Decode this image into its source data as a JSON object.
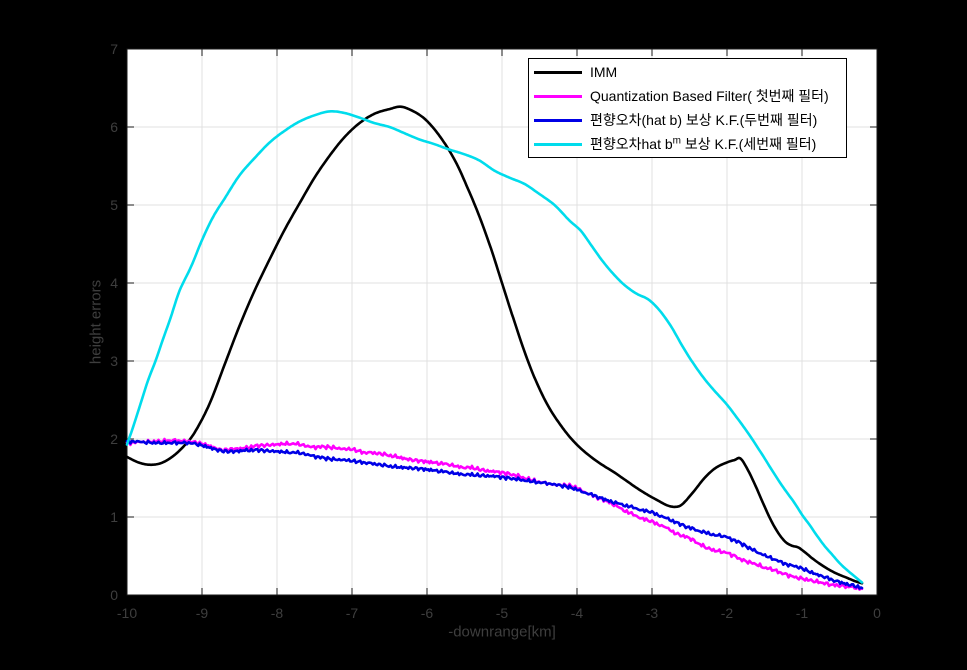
{
  "figure": {
    "background": "#000000",
    "plot_background": "#ffffff",
    "grid_color": "#e0e0e0",
    "tick_text_color": "#3e3e3e",
    "spine_color": "#1a1a1a"
  },
  "legend": {
    "entries": [
      {
        "label_pre": "IMM",
        "label_sup": "",
        "label_post": ""
      },
      {
        "label_pre": "Quantization Based Filter( 첫번째 필터)",
        "label_sup": "",
        "label_post": ""
      },
      {
        "label_pre": "편향오차(hat b) 보상 K.F.(두번째 필터)",
        "label_sup": "",
        "label_post": ""
      },
      {
        "label_pre": "편향오차hat b",
        "label_sup": "m",
        "label_post": " 보상 K.F.(세번째 필터)"
      }
    ]
  },
  "chart_data": {
    "type": "line",
    "title": "",
    "xlabel": "-downrange[km]",
    "ylabel": "height errors",
    "xlim": [
      -10,
      0
    ],
    "ylim": [
      0,
      7
    ],
    "x_ticks": [
      -10,
      -9,
      -8,
      -7,
      -6,
      -5,
      -4,
      -3,
      -2,
      -1,
      0
    ],
    "y_ticks": [
      0,
      1,
      2,
      3,
      4,
      5,
      6,
      7
    ],
    "grid": true,
    "legend_position": "inside-top-right",
    "series": [
      {
        "name": "IMM",
        "color": "#000000",
        "jitter": 0,
        "points": [
          [
            -10,
            1.77
          ],
          [
            -9.85,
            1.7
          ],
          [
            -9.7,
            1.67
          ],
          [
            -9.55,
            1.69
          ],
          [
            -9.4,
            1.77
          ],
          [
            -9.25,
            1.9
          ],
          [
            -9.1,
            2.08
          ],
          [
            -8.9,
            2.45
          ],
          [
            -8.7,
            2.95
          ],
          [
            -8.5,
            3.45
          ],
          [
            -8.3,
            3.9
          ],
          [
            -8.1,
            4.3
          ],
          [
            -7.9,
            4.68
          ],
          [
            -7.7,
            5.02
          ],
          [
            -7.5,
            5.35
          ],
          [
            -7.3,
            5.63
          ],
          [
            -7.1,
            5.87
          ],
          [
            -6.9,
            6.05
          ],
          [
            -6.7,
            6.17
          ],
          [
            -6.5,
            6.23
          ],
          [
            -6.35,
            6.26
          ],
          [
            -6.2,
            6.21
          ],
          [
            -6.05,
            6.12
          ],
          [
            -5.9,
            5.97
          ],
          [
            -5.75,
            5.77
          ],
          [
            -5.6,
            5.52
          ],
          [
            -5.45,
            5.2
          ],
          [
            -5.3,
            4.85
          ],
          [
            -5.15,
            4.45
          ],
          [
            -5,
            4.0
          ],
          [
            -4.85,
            3.55
          ],
          [
            -4.7,
            3.12
          ],
          [
            -4.55,
            2.75
          ],
          [
            -4.4,
            2.45
          ],
          [
            -4.25,
            2.22
          ],
          [
            -4.1,
            2.03
          ],
          [
            -3.95,
            1.88
          ],
          [
            -3.8,
            1.76
          ],
          [
            -3.65,
            1.66
          ],
          [
            -3.5,
            1.57
          ],
          [
            -3.35,
            1.47
          ],
          [
            -3.2,
            1.37
          ],
          [
            -3.05,
            1.28
          ],
          [
            -2.9,
            1.2
          ],
          [
            -2.8,
            1.15
          ],
          [
            -2.7,
            1.13
          ],
          [
            -2.6,
            1.16
          ],
          [
            -2.45,
            1.32
          ],
          [
            -2.3,
            1.5
          ],
          [
            -2.15,
            1.63
          ],
          [
            -2,
            1.7
          ],
          [
            -1.9,
            1.73
          ],
          [
            -1.82,
            1.75
          ],
          [
            -1.72,
            1.6
          ],
          [
            -1.62,
            1.4
          ],
          [
            -1.52,
            1.18
          ],
          [
            -1.42,
            0.97
          ],
          [
            -1.32,
            0.8
          ],
          [
            -1.22,
            0.68
          ],
          [
            -1.13,
            0.63
          ],
          [
            -1.05,
            0.61
          ],
          [
            -0.95,
            0.54
          ],
          [
            -0.85,
            0.46
          ],
          [
            -0.7,
            0.36
          ],
          [
            -0.55,
            0.28
          ],
          [
            -0.4,
            0.22
          ],
          [
            -0.3,
            0.18
          ],
          [
            -0.2,
            0.15
          ]
        ]
      },
      {
        "name": "Quantization Based Filter( 첫번째 필터)",
        "color": "#ff00ff",
        "jitter": 0.013,
        "points": [
          [
            -10,
            1.95
          ],
          [
            -9.8,
            1.96
          ],
          [
            -9.6,
            1.97
          ],
          [
            -9.4,
            1.98
          ],
          [
            -9.2,
            1.97
          ],
          [
            -9.05,
            1.95
          ],
          [
            -8.9,
            1.91
          ],
          [
            -8.75,
            1.86
          ],
          [
            -8.6,
            1.87
          ],
          [
            -8.45,
            1.88
          ],
          [
            -8.3,
            1.91
          ],
          [
            -8.15,
            1.92
          ],
          [
            -8,
            1.93
          ],
          [
            -7.85,
            1.94
          ],
          [
            -7.7,
            1.93
          ],
          [
            -7.55,
            1.9
          ],
          [
            -7.4,
            1.9
          ],
          [
            -7.25,
            1.89
          ],
          [
            -7.1,
            1.87
          ],
          [
            -7,
            1.87
          ],
          [
            -6.85,
            1.83
          ],
          [
            -6.7,
            1.82
          ],
          [
            -6.55,
            1.8
          ],
          [
            -6.4,
            1.77
          ],
          [
            -6.25,
            1.74
          ],
          [
            -6.1,
            1.72
          ],
          [
            -6,
            1.71
          ],
          [
            -5.85,
            1.69
          ],
          [
            -5.7,
            1.67
          ],
          [
            -5.55,
            1.64
          ],
          [
            -5.4,
            1.63
          ],
          [
            -5.25,
            1.6
          ],
          [
            -5.1,
            1.58
          ],
          [
            -5,
            1.57
          ],
          [
            -4.85,
            1.54
          ],
          [
            -4.7,
            1.5
          ],
          [
            -4.55,
            1.46
          ],
          [
            -4.4,
            1.43
          ],
          [
            -4.25,
            1.41
          ],
          [
            -4.1,
            1.4
          ],
          [
            -4,
            1.37
          ],
          [
            -3.85,
            1.3
          ],
          [
            -3.7,
            1.24
          ],
          [
            -3.55,
            1.18
          ],
          [
            -3.4,
            1.1
          ],
          [
            -3.25,
            1.03
          ],
          [
            -3.1,
            0.97
          ],
          [
            -3,
            0.94
          ],
          [
            -2.85,
            0.88
          ],
          [
            -2.7,
            0.8
          ],
          [
            -2.6,
            0.76
          ],
          [
            -2.5,
            0.73
          ],
          [
            -2.4,
            0.67
          ],
          [
            -2.3,
            0.62
          ],
          [
            -2.2,
            0.58
          ],
          [
            -2.1,
            0.56
          ],
          [
            -2,
            0.54
          ],
          [
            -1.9,
            0.5
          ],
          [
            -1.8,
            0.45
          ],
          [
            -1.7,
            0.42
          ],
          [
            -1.6,
            0.39
          ],
          [
            -1.5,
            0.35
          ],
          [
            -1.4,
            0.33
          ],
          [
            -1.3,
            0.29
          ],
          [
            -1.2,
            0.26
          ],
          [
            -1.1,
            0.23
          ],
          [
            -1,
            0.21
          ],
          [
            -0.9,
            0.19
          ],
          [
            -0.8,
            0.17
          ],
          [
            -0.7,
            0.15
          ],
          [
            -0.6,
            0.13
          ],
          [
            -0.5,
            0.12
          ],
          [
            -0.4,
            0.11
          ],
          [
            -0.3,
            0.1
          ],
          [
            -0.2,
            0.08
          ]
        ]
      },
      {
        "name": "편향오차(hat b) 보상 K.F.(두번째 필터)",
        "color": "#0000e6",
        "jitter": 0.012,
        "points": [
          [
            -10,
            1.97
          ],
          [
            -9.8,
            1.96
          ],
          [
            -9.6,
            1.95
          ],
          [
            -9.4,
            1.95
          ],
          [
            -9.2,
            1.95
          ],
          [
            -9.05,
            1.93
          ],
          [
            -8.9,
            1.89
          ],
          [
            -8.75,
            1.85
          ],
          [
            -8.6,
            1.84
          ],
          [
            -8.45,
            1.85
          ],
          [
            -8.3,
            1.86
          ],
          [
            -8.15,
            1.85
          ],
          [
            -8,
            1.84
          ],
          [
            -7.85,
            1.83
          ],
          [
            -7.7,
            1.82
          ],
          [
            -7.55,
            1.79
          ],
          [
            -7.4,
            1.76
          ],
          [
            -7.25,
            1.74
          ],
          [
            -7.1,
            1.73
          ],
          [
            -7,
            1.72
          ],
          [
            -6.85,
            1.7
          ],
          [
            -6.7,
            1.68
          ],
          [
            -6.55,
            1.66
          ],
          [
            -6.4,
            1.64
          ],
          [
            -6.25,
            1.63
          ],
          [
            -6.1,
            1.62
          ],
          [
            -6,
            1.61
          ],
          [
            -5.85,
            1.59
          ],
          [
            -5.7,
            1.57
          ],
          [
            -5.55,
            1.55
          ],
          [
            -5.4,
            1.54
          ],
          [
            -5.25,
            1.53
          ],
          [
            -5.1,
            1.52
          ],
          [
            -5,
            1.51
          ],
          [
            -4.85,
            1.49
          ],
          [
            -4.7,
            1.47
          ],
          [
            -4.55,
            1.45
          ],
          [
            -4.4,
            1.43
          ],
          [
            -4.25,
            1.41
          ],
          [
            -4.1,
            1.38
          ],
          [
            -4,
            1.35
          ],
          [
            -3.85,
            1.3
          ],
          [
            -3.7,
            1.25
          ],
          [
            -3.55,
            1.2
          ],
          [
            -3.4,
            1.16
          ],
          [
            -3.25,
            1.12
          ],
          [
            -3.1,
            1.08
          ],
          [
            -3,
            1.06
          ],
          [
            -2.85,
            1.0
          ],
          [
            -2.7,
            0.94
          ],
          [
            -2.55,
            0.88
          ],
          [
            -2.4,
            0.83
          ],
          [
            -2.25,
            0.79
          ],
          [
            -2.1,
            0.76
          ],
          [
            -2,
            0.74
          ],
          [
            -1.85,
            0.68
          ],
          [
            -1.7,
            0.6
          ],
          [
            -1.55,
            0.53
          ],
          [
            -1.4,
            0.47
          ],
          [
            -1.25,
            0.41
          ],
          [
            -1.1,
            0.37
          ],
          [
            -1,
            0.34
          ],
          [
            -0.85,
            0.28
          ],
          [
            -0.7,
            0.23
          ],
          [
            -0.55,
            0.18
          ],
          [
            -0.4,
            0.14
          ],
          [
            -0.3,
            0.12
          ],
          [
            -0.2,
            0.09
          ]
        ]
      },
      {
        "name": "편향오차hat b^m 보상 K.F.(세번째 필터)",
        "color": "#00dcec",
        "jitter": 0,
        "points": [
          [
            -10,
            1.93
          ],
          [
            -9.92,
            2.15
          ],
          [
            -9.82,
            2.45
          ],
          [
            -9.72,
            2.75
          ],
          [
            -9.62,
            3.0
          ],
          [
            -9.52,
            3.28
          ],
          [
            -9.42,
            3.55
          ],
          [
            -9.3,
            3.9
          ],
          [
            -9.15,
            4.2
          ],
          [
            -9,
            4.55
          ],
          [
            -8.85,
            4.85
          ],
          [
            -8.7,
            5.08
          ],
          [
            -8.5,
            5.38
          ],
          [
            -8.3,
            5.6
          ],
          [
            -8.1,
            5.8
          ],
          [
            -7.9,
            5.95
          ],
          [
            -7.7,
            6.07
          ],
          [
            -7.5,
            6.15
          ],
          [
            -7.3,
            6.2
          ],
          [
            -7.1,
            6.18
          ],
          [
            -6.9,
            6.12
          ],
          [
            -6.7,
            6.05
          ],
          [
            -6.5,
            6.0
          ],
          [
            -6.3,
            5.92
          ],
          [
            -6.1,
            5.84
          ],
          [
            -5.9,
            5.78
          ],
          [
            -5.7,
            5.71
          ],
          [
            -5.5,
            5.65
          ],
          [
            -5.3,
            5.57
          ],
          [
            -5.1,
            5.44
          ],
          [
            -4.9,
            5.35
          ],
          [
            -4.7,
            5.27
          ],
          [
            -4.5,
            5.14
          ],
          [
            -4.3,
            5.0
          ],
          [
            -4.1,
            4.8
          ],
          [
            -3.95,
            4.67
          ],
          [
            -3.8,
            4.47
          ],
          [
            -3.65,
            4.27
          ],
          [
            -3.5,
            4.1
          ],
          [
            -3.35,
            3.96
          ],
          [
            -3.2,
            3.86
          ],
          [
            -3.05,
            3.79
          ],
          [
            -2.9,
            3.65
          ],
          [
            -2.75,
            3.45
          ],
          [
            -2.6,
            3.2
          ],
          [
            -2.45,
            2.97
          ],
          [
            -2.3,
            2.77
          ],
          [
            -2.15,
            2.6
          ],
          [
            -2,
            2.44
          ],
          [
            -1.85,
            2.25
          ],
          [
            -1.7,
            2.05
          ],
          [
            -1.55,
            1.83
          ],
          [
            -1.4,
            1.6
          ],
          [
            -1.25,
            1.38
          ],
          [
            -1.1,
            1.18
          ],
          [
            -1,
            1.03
          ],
          [
            -0.9,
            0.9
          ],
          [
            -0.8,
            0.76
          ],
          [
            -0.7,
            0.63
          ],
          [
            -0.6,
            0.52
          ],
          [
            -0.5,
            0.41
          ],
          [
            -0.4,
            0.32
          ],
          [
            -0.3,
            0.24
          ],
          [
            -0.2,
            0.16
          ]
        ]
      }
    ]
  }
}
